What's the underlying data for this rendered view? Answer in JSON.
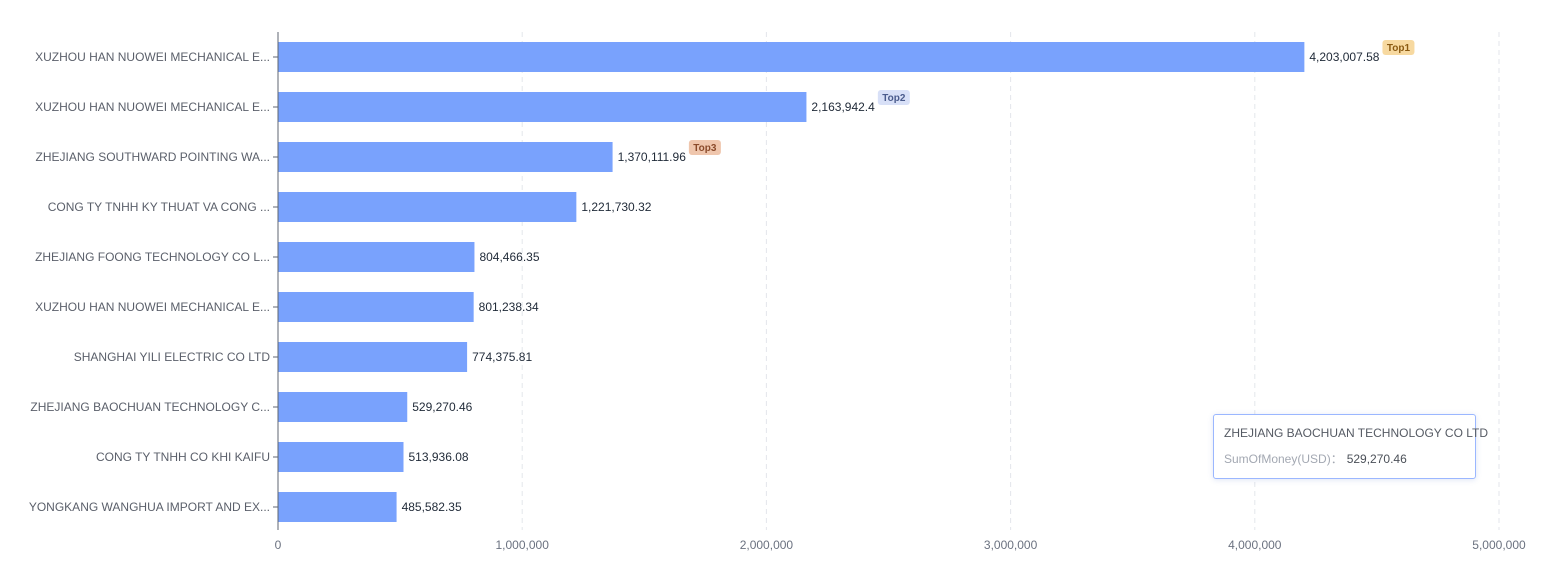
{
  "chart_data": {
    "type": "bar",
    "orientation": "horizontal",
    "categories": [
      "XUZHOU HAN NUOWEI MECHANICAL E...",
      "XUZHOU HAN NUOWEI MECHANICAL E...",
      "ZHEJIANG SOUTHWARD POINTING WA...",
      "CONG TY TNHH KY THUAT VA CONG ...",
      "ZHEJIANG FOONG TECHNOLOGY CO L...",
      "XUZHOU HAN NUOWEI MECHANICAL E...",
      "SHANGHAI YILI ELECTRIC CO LTD",
      "ZHEJIANG BAOCHUAN TECHNOLOGY C...",
      "CONG TY TNHH CO KHI KAIFU",
      "YONGKANG WANGHUA IMPORT AND EX..."
    ],
    "values": [
      4203007.58,
      2163942.4,
      1370111.96,
      1221730.32,
      804466.35,
      801238.34,
      774375.81,
      529270.46,
      513936.08,
      485582.35
    ],
    "value_labels": [
      "4,203,007.58",
      "2,163,942.4",
      "1,370,111.96",
      "1,221,730.32",
      "804,466.35",
      "801,238.34",
      "774,375.81",
      "529,270.46",
      "513,936.08",
      "485,582.35"
    ],
    "badges": [
      {
        "index": 0,
        "text": "Top1",
        "bg": "#f7d9a0",
        "fg": "#8a5a12"
      },
      {
        "index": 1,
        "text": "Top2",
        "bg": "#d8e0f7",
        "fg": "#4a5b8c"
      },
      {
        "index": 2,
        "text": "Top3",
        "bg": "#efc6ad",
        "fg": "#8a4a2a"
      }
    ],
    "x_ticks": [
      0,
      1000000,
      2000000,
      3000000,
      4000000,
      5000000
    ],
    "x_tick_labels": [
      "0",
      "1,000,000",
      "2,000,000",
      "3,000,000",
      "4,000,000",
      "5,000,000"
    ],
    "xlim": [
      0,
      5000000
    ],
    "grid": "vertical dashed",
    "bar_color": "#79a2fd"
  },
  "tooltip": {
    "title": "ZHEJIANG BAOCHUAN TECHNOLOGY CO LTD",
    "key": "SumOfMoney(USD)：",
    "value": "529,270.46"
  }
}
